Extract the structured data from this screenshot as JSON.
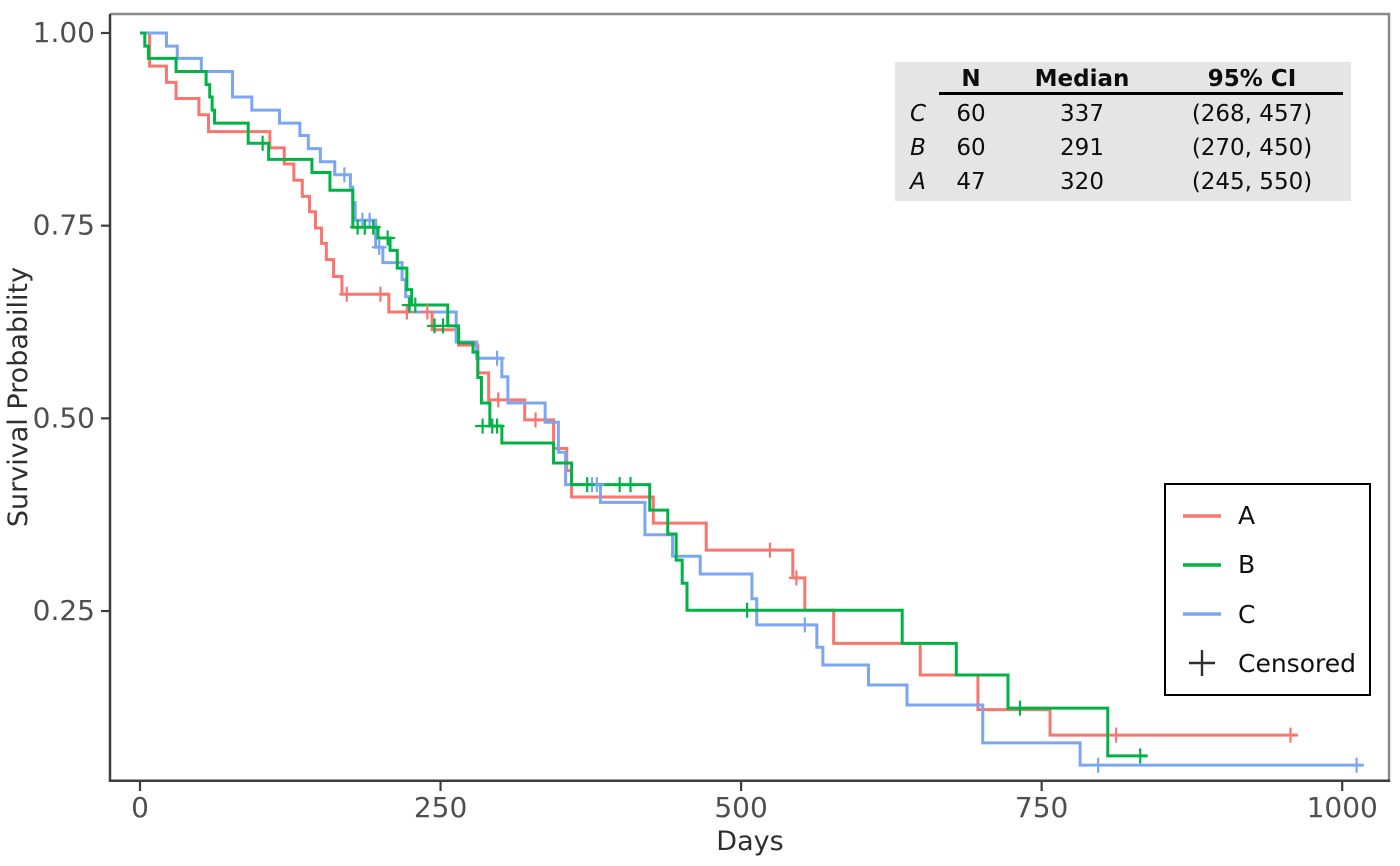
{
  "chart_data": {
    "type": "line",
    "variant": "kaplan-meier-step-plot",
    "title": "",
    "xlabel": "Days",
    "ylabel": "Survival Probability",
    "xlim": [
      -25,
      1040
    ],
    "ylim": [
      0.028,
      1.026
    ],
    "xticks": [
      0,
      250,
      500,
      750,
      1000
    ],
    "xtick_labels": [
      "0",
      "250",
      "500",
      "750",
      "1000"
    ],
    "yticks": [
      0.25,
      0.5,
      0.75,
      1.0
    ],
    "ytick_labels": [
      "0.25",
      "0.50",
      "0.75",
      "1.00"
    ],
    "grid": false,
    "legend_position": "lower-right",
    "series": [
      {
        "name": "A",
        "color": "#F8766D",
        "n": 47,
        "median": 320,
        "ci": "(245, 550)",
        "steps": [
          [
            0,
            1.0
          ],
          [
            8,
            0.957
          ],
          [
            22,
            0.936
          ],
          [
            30,
            0.915
          ],
          [
            49,
            0.894
          ],
          [
            57,
            0.872
          ],
          [
            108,
            0.851
          ],
          [
            120,
            0.83
          ],
          [
            128,
            0.809
          ],
          [
            135,
            0.788
          ],
          [
            141,
            0.768
          ],
          [
            146,
            0.747
          ],
          [
            151,
            0.727
          ],
          [
            155,
            0.706
          ],
          [
            161,
            0.684
          ],
          [
            168,
            0.661
          ],
          [
            207,
            0.638
          ],
          [
            243,
            0.615
          ],
          [
            265,
            0.595
          ],
          [
            281,
            0.559
          ],
          [
            290,
            0.524
          ],
          [
            320,
            0.498
          ],
          [
            344,
            0.461
          ],
          [
            355,
            0.432
          ],
          [
            359,
            0.398
          ],
          [
            427,
            0.364
          ],
          [
            471,
            0.329
          ],
          [
            543,
            0.293
          ],
          [
            553,
            0.251
          ],
          [
            577,
            0.208
          ],
          [
            649,
            0.167
          ],
          [
            697,
            0.122
          ],
          [
            757,
            0.089
          ]
        ],
        "end": 963,
        "censored": [
          [
            172,
            0.661
          ],
          [
            200,
            0.661
          ],
          [
            222,
            0.638
          ],
          [
            239,
            0.638
          ],
          [
            298,
            0.524
          ],
          [
            329,
            0.498
          ],
          [
            524,
            0.329
          ],
          [
            546,
            0.293
          ],
          [
            812,
            0.089
          ],
          [
            957,
            0.089
          ]
        ]
      },
      {
        "name": "B",
        "color": "#00B344",
        "n": 60,
        "median": 291,
        "ci": "(270, 450)",
        "steps": [
          [
            0,
            1.0
          ],
          [
            4,
            0.983
          ],
          [
            7,
            0.967
          ],
          [
            30,
            0.95
          ],
          [
            55,
            0.933
          ],
          [
            58,
            0.917
          ],
          [
            60,
            0.9
          ],
          [
            62,
            0.883
          ],
          [
            90,
            0.857
          ],
          [
            107,
            0.836
          ],
          [
            143,
            0.819
          ],
          [
            158,
            0.796
          ],
          [
            177,
            0.748
          ],
          [
            198,
            0.734
          ],
          [
            208,
            0.718
          ],
          [
            214,
            0.695
          ],
          [
            222,
            0.667
          ],
          [
            226,
            0.647
          ],
          [
            256,
            0.62
          ],
          [
            265,
            0.598
          ],
          [
            277,
            0.586
          ],
          [
            281,
            0.553
          ],
          [
            284,
            0.52
          ],
          [
            291,
            0.49
          ],
          [
            301,
            0.468
          ],
          [
            344,
            0.442
          ],
          [
            359,
            0.414
          ],
          [
            424,
            0.381
          ],
          [
            439,
            0.35
          ],
          [
            446,
            0.316
          ],
          [
            451,
            0.286
          ],
          [
            455,
            0.251
          ],
          [
            634,
            0.208
          ],
          [
            679,
            0.167
          ],
          [
            722,
            0.124
          ],
          [
            805,
            0.062
          ]
        ],
        "end": 838,
        "censored": [
          [
            102,
            0.857
          ],
          [
            181,
            0.748
          ],
          [
            187,
            0.748
          ],
          [
            194,
            0.748
          ],
          [
            206,
            0.734
          ],
          [
            224,
            0.647
          ],
          [
            229,
            0.647
          ],
          [
            245,
            0.62
          ],
          [
            252,
            0.62
          ],
          [
            285,
            0.49
          ],
          [
            293,
            0.49
          ],
          [
            297,
            0.49
          ],
          [
            372,
            0.414
          ],
          [
            399,
            0.414
          ],
          [
            408,
            0.414
          ],
          [
            505,
            0.251
          ],
          [
            732,
            0.124
          ],
          [
            832,
            0.062
          ]
        ]
      },
      {
        "name": "C",
        "color": "#7AA6F2",
        "n": 60,
        "median": 337,
        "ci": "(268, 457)",
        "steps": [
          [
            0,
            1.0
          ],
          [
            22,
            0.983
          ],
          [
            31,
            0.967
          ],
          [
            51,
            0.95
          ],
          [
            77,
            0.917
          ],
          [
            93,
            0.9
          ],
          [
            116,
            0.883
          ],
          [
            133,
            0.867
          ],
          [
            140,
            0.85
          ],
          [
            150,
            0.833
          ],
          [
            162,
            0.816
          ],
          [
            175,
            0.8
          ],
          [
            177,
            0.78
          ],
          [
            179,
            0.757
          ],
          [
            196,
            0.722
          ],
          [
            202,
            0.702
          ],
          [
            218,
            0.68
          ],
          [
            221,
            0.658
          ],
          [
            224,
            0.638
          ],
          [
            263,
            0.599
          ],
          [
            280,
            0.578
          ],
          [
            301,
            0.554
          ],
          [
            306,
            0.52
          ],
          [
            337,
            0.495
          ],
          [
            348,
            0.456
          ],
          [
            354,
            0.414
          ],
          [
            383,
            0.391
          ],
          [
            420,
            0.349
          ],
          [
            443,
            0.321
          ],
          [
            466,
            0.298
          ],
          [
            509,
            0.266
          ],
          [
            513,
            0.232
          ],
          [
            563,
            0.203
          ],
          [
            568,
            0.18
          ],
          [
            606,
            0.154
          ],
          [
            638,
            0.128
          ],
          [
            701,
            0.079
          ],
          [
            782,
            0.05
          ]
        ],
        "end": 1017,
        "censored": [
          [
            170,
            0.816
          ],
          [
            185,
            0.757
          ],
          [
            191,
            0.757
          ],
          [
            199,
            0.722
          ],
          [
            297,
            0.578
          ],
          [
            376,
            0.414
          ],
          [
            380,
            0.414
          ],
          [
            553,
            0.232
          ],
          [
            797,
            0.05
          ],
          [
            1012,
            0.05
          ]
        ]
      }
    ]
  },
  "stats_table": {
    "headers": [
      "N",
      "Median",
      "95% CI"
    ],
    "row_order": [
      2,
      1,
      0
    ],
    "bg": "#e5e5e5"
  },
  "legend": {
    "censored_label": "Censored",
    "censored_symbol": "+"
  },
  "colors": {
    "axis_spine": "#3d3d3d",
    "panel_border": "#8c8c8c",
    "tick_label": "#4f4f4f",
    "axis_title": "#2e2e2e",
    "table_bg": "#e5e5e5",
    "censor_legend": "#2e2e2e"
  }
}
